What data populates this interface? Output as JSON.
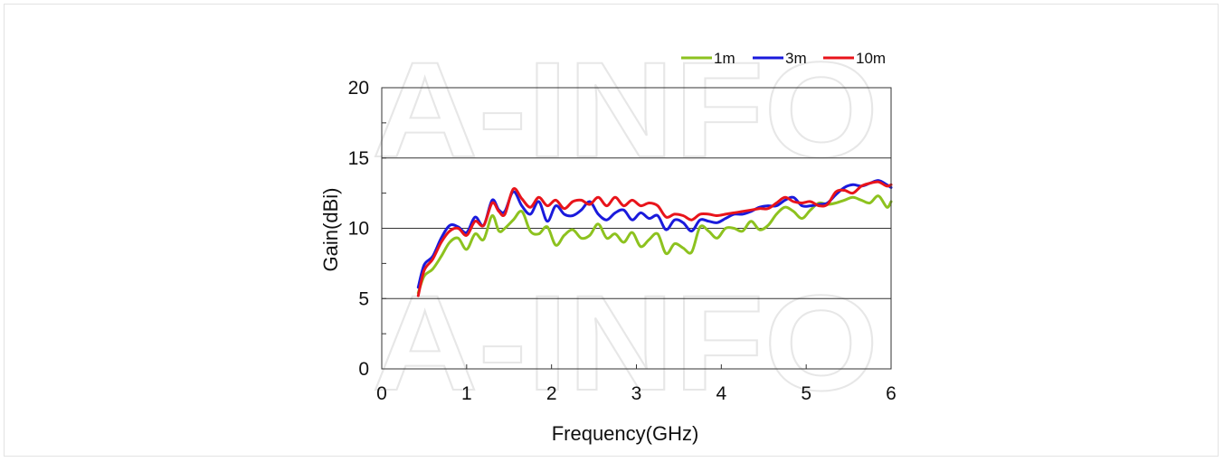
{
  "chart_data": {
    "type": "line",
    "title": "",
    "xlabel": "Frequency(GHz)",
    "ylabel": "Gain(dBi)",
    "xlim": [
      0,
      6
    ],
    "ylim": [
      0,
      20
    ],
    "xticks": [
      0,
      1,
      2,
      3,
      4,
      5,
      6
    ],
    "yticks": [
      0,
      5,
      10,
      15,
      20
    ],
    "grid": "horizontal",
    "legend_position": "top-right",
    "watermark": "A-INFO",
    "series": [
      {
        "name": "1m",
        "color": "#8dc21f",
        "x": [
          0.43,
          0.5,
          0.6,
          0.7,
          0.8,
          0.9,
          1.0,
          1.1,
          1.2,
          1.3,
          1.38,
          1.45,
          1.55,
          1.65,
          1.75,
          1.85,
          1.95,
          2.05,
          2.15,
          2.25,
          2.35,
          2.45,
          2.55,
          2.65,
          2.75,
          2.85,
          2.95,
          3.05,
          3.15,
          3.25,
          3.35,
          3.45,
          3.55,
          3.65,
          3.75,
          3.85,
          3.95,
          4.05,
          4.15,
          4.25,
          4.35,
          4.45,
          4.55,
          4.65,
          4.75,
          4.85,
          4.95,
          5.05,
          5.15,
          5.25,
          5.35,
          5.45,
          5.55,
          5.65,
          5.75,
          5.85,
          5.95,
          6.0
        ],
        "y": [
          5.4,
          6.6,
          7.1,
          8.0,
          9.0,
          9.3,
          8.5,
          9.6,
          9.2,
          10.9,
          9.8,
          10.0,
          10.6,
          11.2,
          9.8,
          9.6,
          10.1,
          8.8,
          9.5,
          9.9,
          9.3,
          9.5,
          10.3,
          9.3,
          9.6,
          9.0,
          9.7,
          8.7,
          9.2,
          9.6,
          8.2,
          8.9,
          8.6,
          8.3,
          10.1,
          9.8,
          9.3,
          10.0,
          10.0,
          9.8,
          10.5,
          9.9,
          10.2,
          11.0,
          11.5,
          11.2,
          10.7,
          11.3,
          11.8,
          11.7,
          11.8,
          12.0,
          12.2,
          12.0,
          11.8,
          12.3,
          11.5,
          11.9
        ]
      },
      {
        "name": "3m",
        "color": "#1a1adc",
        "x": [
          0.43,
          0.5,
          0.6,
          0.7,
          0.8,
          0.9,
          1.0,
          1.1,
          1.2,
          1.3,
          1.38,
          1.45,
          1.55,
          1.65,
          1.75,
          1.85,
          1.95,
          2.05,
          2.15,
          2.25,
          2.35,
          2.45,
          2.55,
          2.65,
          2.75,
          2.85,
          2.95,
          3.05,
          3.15,
          3.25,
          3.35,
          3.45,
          3.55,
          3.65,
          3.75,
          3.85,
          3.95,
          4.05,
          4.15,
          4.25,
          4.35,
          4.45,
          4.55,
          4.65,
          4.75,
          4.85,
          4.95,
          5.05,
          5.15,
          5.25,
          5.35,
          5.45,
          5.55,
          5.65,
          5.75,
          5.85,
          5.95,
          6.0
        ],
        "y": [
          5.8,
          7.4,
          8.0,
          9.3,
          10.2,
          10.1,
          9.7,
          10.8,
          10.2,
          12.0,
          11.3,
          11.2,
          12.6,
          11.6,
          11.0,
          11.9,
          10.5,
          11.6,
          11.0,
          10.9,
          11.3,
          11.9,
          11.0,
          10.6,
          11.1,
          11.3,
          10.6,
          11.1,
          10.7,
          10.9,
          9.9,
          10.6,
          10.4,
          9.8,
          10.6,
          10.5,
          10.4,
          10.7,
          11.0,
          11.0,
          11.2,
          11.5,
          11.6,
          11.6,
          12.0,
          12.2,
          11.6,
          11.6,
          11.7,
          11.8,
          12.4,
          12.9,
          13.1,
          13.0,
          13.2,
          13.4,
          13.1,
          12.9
        ]
      },
      {
        "name": "10m",
        "color": "#e8141b",
        "x": [
          0.43,
          0.5,
          0.6,
          0.7,
          0.8,
          0.9,
          1.0,
          1.1,
          1.2,
          1.3,
          1.38,
          1.45,
          1.55,
          1.65,
          1.75,
          1.85,
          1.95,
          2.05,
          2.15,
          2.25,
          2.35,
          2.45,
          2.55,
          2.65,
          2.75,
          2.85,
          2.95,
          3.05,
          3.15,
          3.25,
          3.35,
          3.45,
          3.55,
          3.65,
          3.75,
          3.85,
          3.95,
          4.05,
          4.15,
          4.25,
          4.35,
          4.45,
          4.55,
          4.65,
          4.75,
          4.85,
          4.95,
          5.05,
          5.15,
          5.25,
          5.35,
          5.45,
          5.55,
          5.65,
          5.75,
          5.85,
          5.95,
          6.0
        ],
        "y": [
          5.2,
          7.0,
          7.8,
          9.0,
          9.8,
          10.0,
          9.5,
          10.5,
          10.2,
          11.8,
          11.2,
          11.0,
          12.8,
          12.1,
          11.5,
          12.2,
          11.6,
          12.0,
          11.4,
          11.9,
          12.0,
          11.7,
          12.2,
          11.6,
          12.2,
          11.6,
          12.0,
          11.6,
          11.8,
          11.6,
          10.8,
          11.0,
          10.9,
          10.6,
          11.0,
          11.0,
          10.9,
          11.0,
          11.1,
          11.2,
          11.3,
          11.4,
          11.4,
          11.8,
          12.2,
          11.9,
          11.8,
          11.9,
          11.6,
          11.7,
          12.6,
          12.7,
          12.5,
          13.0,
          13.2,
          13.3,
          13.0,
          13.1
        ]
      }
    ]
  }
}
